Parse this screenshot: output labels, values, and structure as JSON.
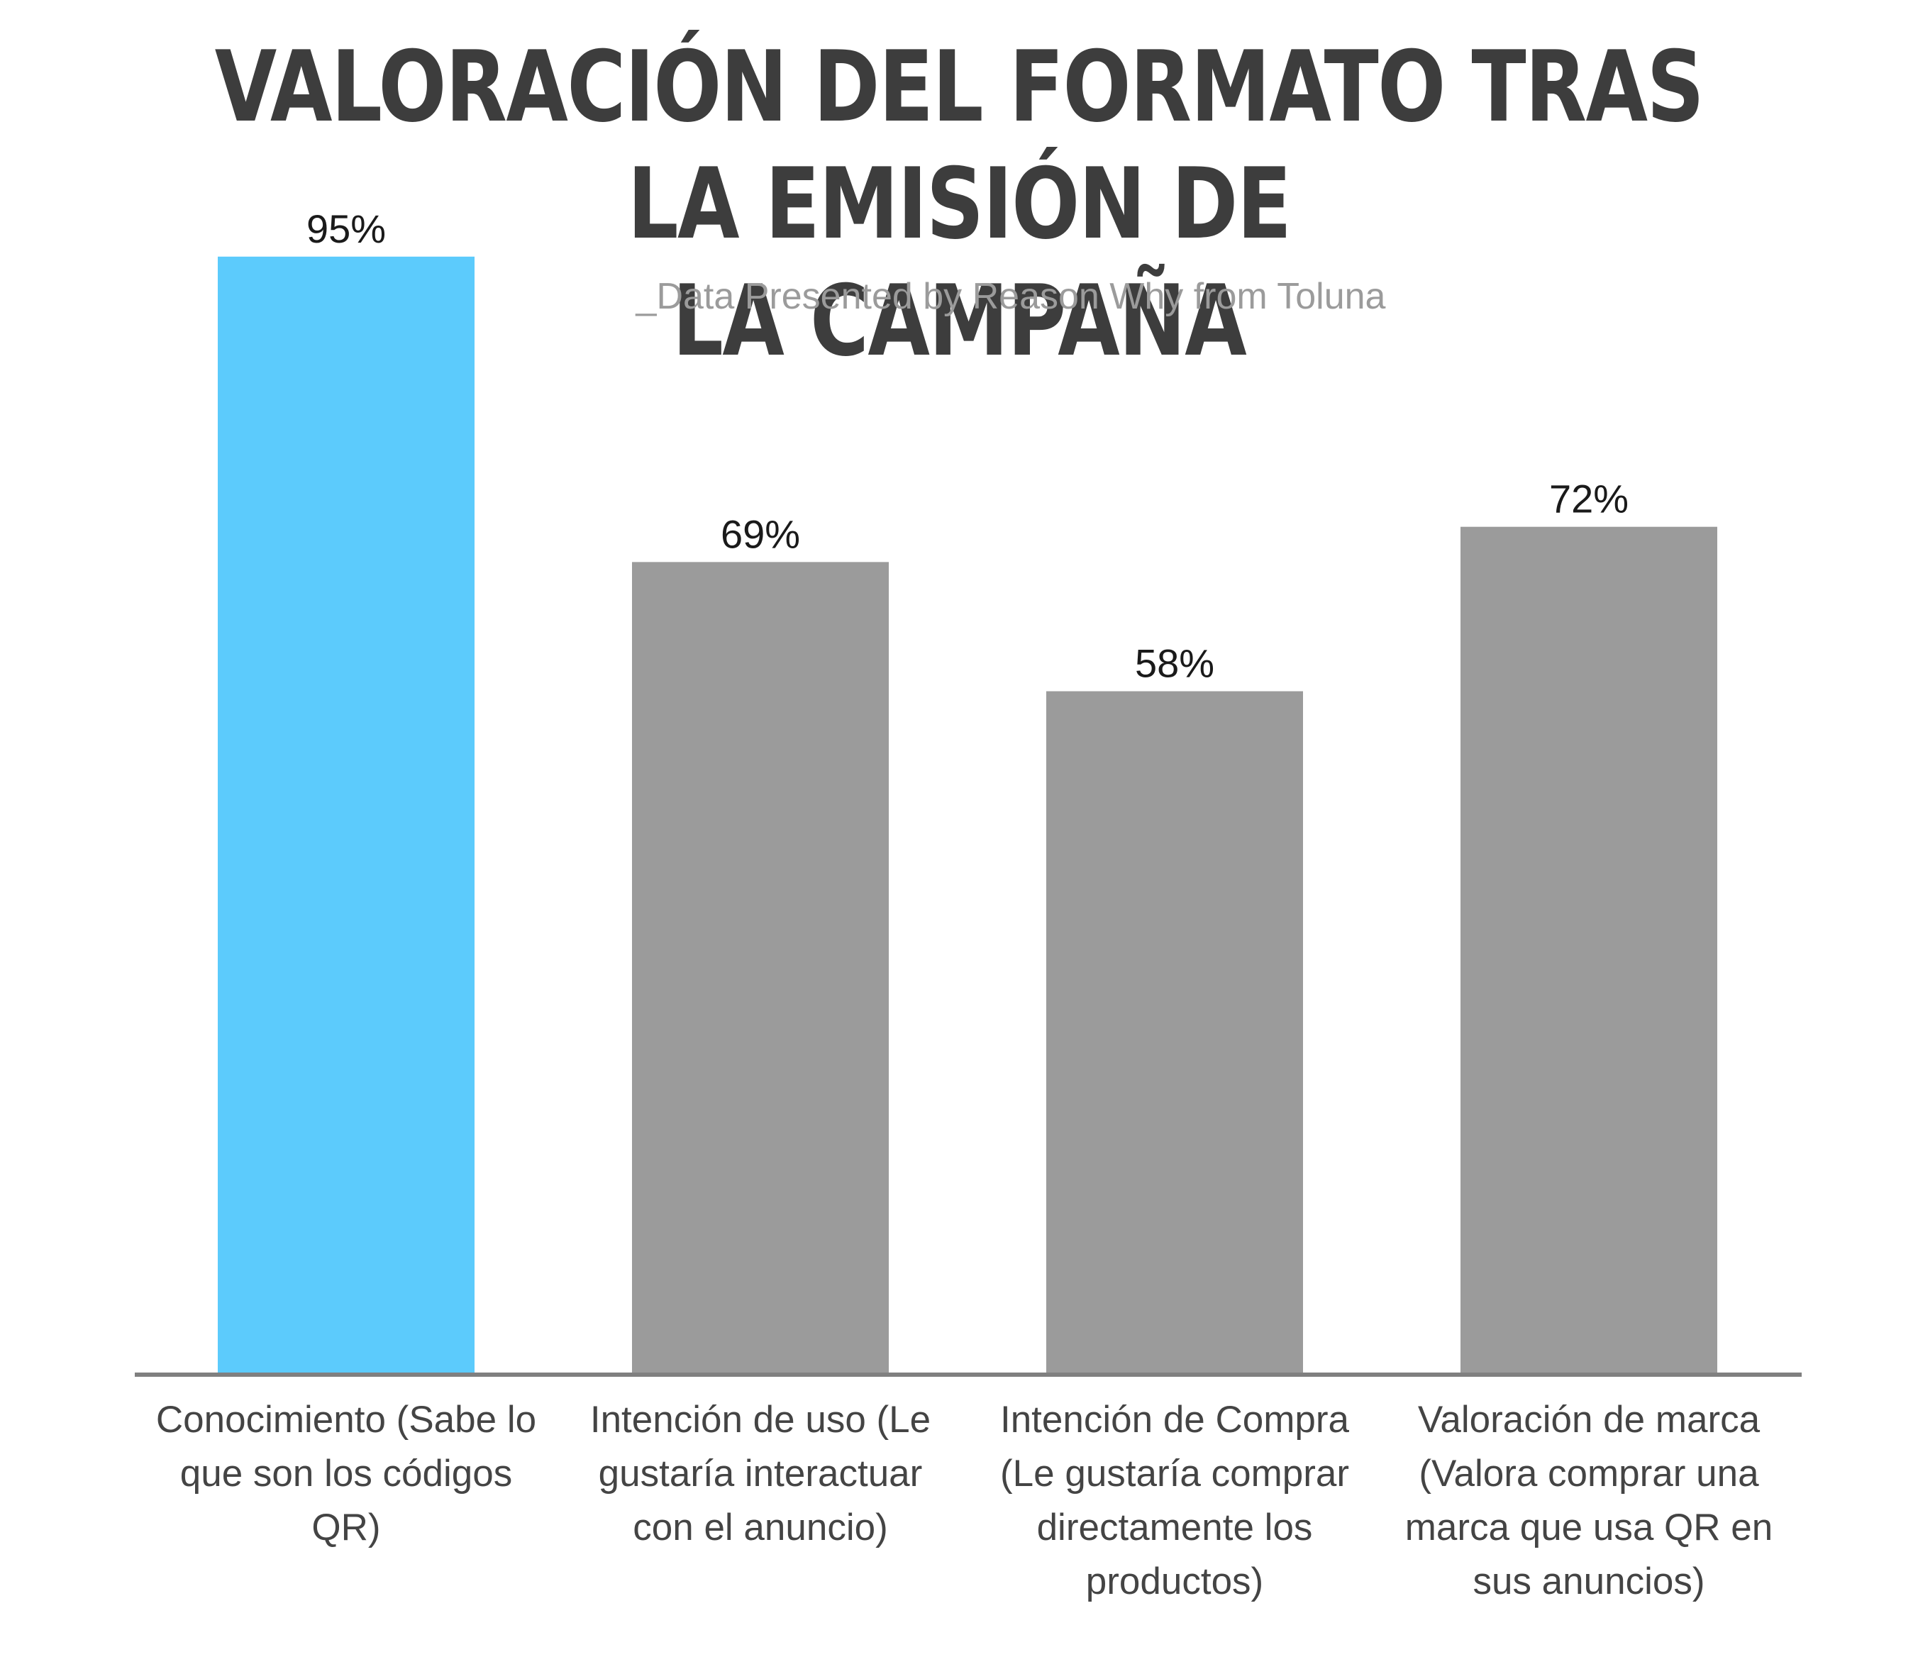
{
  "chart_data": {
    "type": "bar",
    "title_lines": [
      "VALORACIÓN DEL FORMATO TRAS LA EMISIÓN DE",
      "LA CAMPAÑA"
    ],
    "subtitle": "_Data Presented by Reason Why from Toluna",
    "categories": [
      "Conocimiento (Sabe lo que son los códigos QR)",
      "Intención de uso (Le gustaría interactuar con el anuncio)",
      "Intención de Compra (Le gustaría comprar directamente los productos)",
      "Valoración de marca (Valora comprar una marca que usa QR en sus anuncios)"
    ],
    "category_label_lines": [
      [
        "Conocimiento (Sabe lo",
        "que son los códigos",
        "QR)"
      ],
      [
        "Intención de uso (Le",
        "gustaría interactuar",
        "con el anuncio)"
      ],
      [
        "Intención de Compra",
        "(Le gustaría comprar",
        "directamente los",
        "productos)"
      ],
      [
        "Valoración de marca",
        "(Valora comprar una",
        "marca que usa QR en",
        "sus anuncios)"
      ]
    ],
    "values": [
      95,
      69,
      58,
      72
    ],
    "value_labels": [
      "95%",
      "69%",
      "58%",
      "72%"
    ],
    "bar_colors": [
      "#5ccbfc",
      "#9b9b9b",
      "#9b9b9b",
      "#9b9b9b"
    ],
    "ylim": [
      0,
      100
    ],
    "grid": false,
    "legend": "none",
    "axis_color": "#808080"
  }
}
